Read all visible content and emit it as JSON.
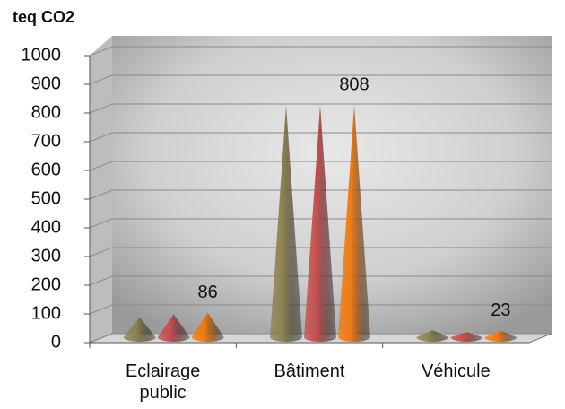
{
  "chart_data": {
    "type": "cone3d",
    "y_label": "teq CO2",
    "categories": [
      "Eclairage public",
      "Bâtiment",
      "Véhicule"
    ],
    "series": [
      {
        "color": "#8c8250",
        "values": [
          70,
          808,
          25
        ]
      },
      {
        "color": "#c44e4e",
        "values": [
          80,
          808,
          18
        ]
      },
      {
        "color": "#f07a10",
        "values": [
          86,
          808,
          23
        ],
        "show_labels": true
      }
    ],
    "ylim": [
      0,
      1000
    ],
    "yticks": [
      0,
      100,
      200,
      300,
      400,
      500,
      600,
      700,
      800,
      900,
      1000
    ],
    "grid": true
  }
}
